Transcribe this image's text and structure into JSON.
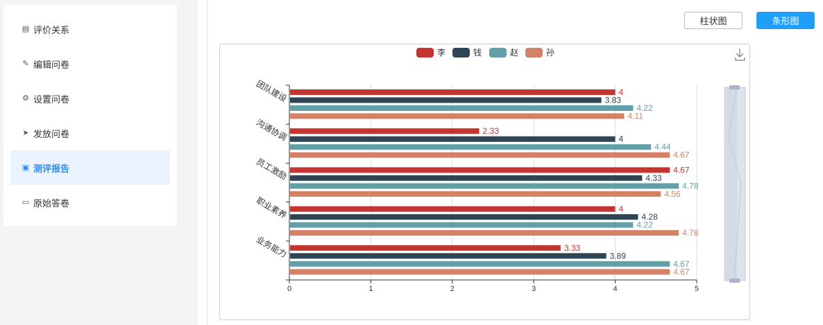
{
  "sidebar": {
    "items": [
      {
        "label": "评价关系",
        "icon": "chart-icon"
      },
      {
        "label": "编辑问卷",
        "icon": "edit-icon"
      },
      {
        "label": "设置问卷",
        "icon": "gear-icon"
      },
      {
        "label": "发放问卷",
        "icon": "send-icon"
      },
      {
        "label": "测评报告",
        "icon": "report-icon",
        "active": true
      },
      {
        "label": "原始答卷",
        "icon": "answer-icon"
      }
    ]
  },
  "toolbar": {
    "column_label": "柱状图",
    "bar_label": "条形图"
  },
  "colors": {
    "accent": "#1f9ffc",
    "series": [
      "#c23531",
      "#2f4554",
      "#61a0a8",
      "#d48265"
    ]
  },
  "chart_data": {
    "type": "bar",
    "orientation": "horizontal",
    "categories": [
      "团队建设",
      "沟通协调",
      "员工激励",
      "职业素养",
      "业务能力"
    ],
    "series": [
      {
        "name": "李",
        "values": [
          4,
          2.33,
          4.67,
          4,
          3.33
        ]
      },
      {
        "name": "钱",
        "values": [
          3.83,
          4,
          4.33,
          4.28,
          3.89
        ]
      },
      {
        "name": "赵",
        "values": [
          4.22,
          4.44,
          4.78,
          4.22,
          4.67
        ]
      },
      {
        "name": "孙",
        "values": [
          4.11,
          4.67,
          4.56,
          4.78,
          4.67
        ]
      }
    ],
    "xlim": [
      0,
      5
    ],
    "xticks": [
      "0",
      "1",
      "2",
      "3",
      "4",
      "5"
    ],
    "legend": "top-center",
    "grid": true,
    "datazoom": "right-vertical-slider"
  }
}
